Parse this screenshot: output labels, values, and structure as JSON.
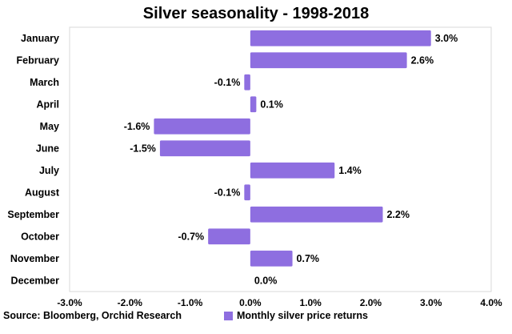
{
  "chart_data": {
    "type": "bar",
    "orientation": "horizontal",
    "title": "Silver seasonality - 1998-2018",
    "categories": [
      "January",
      "February",
      "March",
      "April",
      "May",
      "June",
      "July",
      "August",
      "September",
      "October",
      "November",
      "December"
    ],
    "series": [
      {
        "name": "Monthly silver price returns",
        "values": [
          3.0,
          2.6,
          -0.1,
          0.1,
          -1.6,
          -1.5,
          1.4,
          -0.1,
          2.2,
          -0.7,
          0.7,
          0.0
        ],
        "labels": [
          "3.0%",
          "2.6%",
          "-0.1%",
          "0.1%",
          "-1.6%",
          "-1.5%",
          "1.4%",
          "-0.1%",
          "2.2%",
          "-0.7%",
          "0.7%",
          "0.0%"
        ]
      }
    ],
    "xlim": [
      -3.0,
      4.0
    ],
    "xticks": [
      -3.0,
      -2.0,
      -1.0,
      0.0,
      1.0,
      2.0,
      3.0,
      4.0
    ],
    "xtick_labels": [
      "-3.0%",
      "-2.0%",
      "-1.0%",
      "0.0%",
      "1.0%",
      "2.0%",
      "3.0%",
      "4.0%"
    ],
    "grid": false,
    "legend_position": "bottom",
    "bar_color": "#8e6ee0",
    "source": "Source: Bloomberg, Orchid Research"
  }
}
